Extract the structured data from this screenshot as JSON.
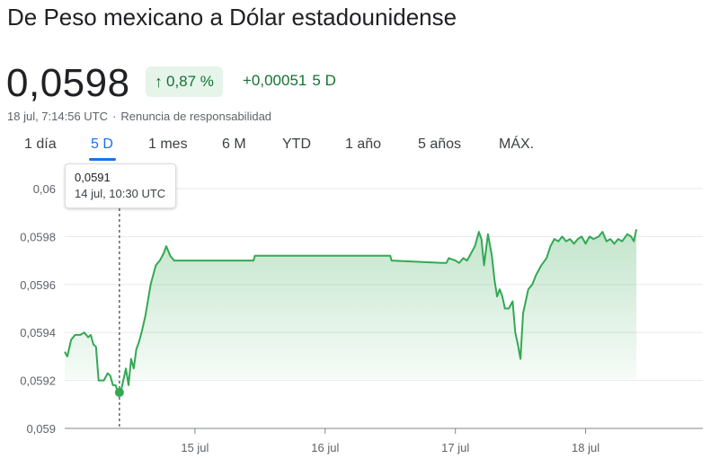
{
  "header": {
    "title": "De Peso mexicano a Dólar estadounidense",
    "price": "0,0598",
    "change_pct": "0,87 %",
    "change_arrow": "↑",
    "change_abs": "+0,00051",
    "change_period": "5 D",
    "timestamp": "18 jul, 7:14:56 UTC",
    "disclaimer": "Renuncia de responsabilidad"
  },
  "tabs": [
    {
      "label": "1 día"
    },
    {
      "label": "5 D",
      "active": true
    },
    {
      "label": "1 mes"
    },
    {
      "label": "6 M"
    },
    {
      "label": "YTD"
    },
    {
      "label": "1 año"
    },
    {
      "label": "5 años"
    },
    {
      "label": "MÁX."
    }
  ],
  "tooltip": {
    "value": "0,0591",
    "time": "14 jul, 10:30 UTC"
  },
  "colors": {
    "line": "#34a853",
    "positive_text": "#137333",
    "active_tab": "#1a73e8"
  },
  "chart_data": {
    "type": "area",
    "y_ticks": [
      "0,059",
      "0,0592",
      "0,0594",
      "0,0596",
      "0,0598",
      "0,06"
    ],
    "y_tick_values": [
      0.059,
      0.0592,
      0.0594,
      0.0596,
      0.0598,
      0.06
    ],
    "ylim": [
      0.059,
      0.06
    ],
    "x_ticks": [
      "15 jul",
      "16 jul",
      "17 jul",
      "18 jul"
    ],
    "x_tick_values": [
      15,
      16,
      17,
      18
    ],
    "xlim": [
      14.0,
      18.9
    ],
    "grid": true,
    "highlight": {
      "x": 14.42,
      "y": 0.05915
    },
    "series": [
      {
        "points": [
          [
            14.0,
            0.05932
          ],
          [
            14.02,
            0.0593
          ],
          [
            14.05,
            0.05937
          ],
          [
            14.08,
            0.05939
          ],
          [
            14.12,
            0.05939
          ],
          [
            14.15,
            0.0594
          ],
          [
            14.18,
            0.05938
          ],
          [
            14.2,
            0.05939
          ],
          [
            14.22,
            0.05935
          ],
          [
            14.24,
            0.05934
          ],
          [
            14.26,
            0.0592
          ],
          [
            14.3,
            0.0592
          ],
          [
            14.33,
            0.05923
          ],
          [
            14.35,
            0.05922
          ],
          [
            14.37,
            0.05918
          ],
          [
            14.39,
            0.05918
          ],
          [
            14.41,
            0.05915
          ],
          [
            14.43,
            0.05915
          ],
          [
            14.45,
            0.0592
          ],
          [
            14.47,
            0.05925
          ],
          [
            14.49,
            0.05918
          ],
          [
            14.51,
            0.05929
          ],
          [
            14.53,
            0.05925
          ],
          [
            14.55,
            0.05933
          ],
          [
            14.57,
            0.05936
          ],
          [
            14.59,
            0.0594
          ],
          [
            14.62,
            0.05947
          ],
          [
            14.66,
            0.0596
          ],
          [
            14.7,
            0.05968
          ],
          [
            14.73,
            0.0597
          ],
          [
            14.76,
            0.05973
          ],
          [
            14.78,
            0.05976
          ],
          [
            14.81,
            0.05972
          ],
          [
            14.84,
            0.0597
          ],
          [
            14.87,
            0.0597
          ],
          [
            15.2,
            0.0597
          ],
          [
            15.45,
            0.0597
          ],
          [
            15.46,
            0.05972
          ],
          [
            16.0,
            0.05972
          ],
          [
            16.5,
            0.05972
          ],
          [
            16.51,
            0.0597
          ],
          [
            16.9,
            0.05969
          ],
          [
            16.93,
            0.05969
          ],
          [
            16.95,
            0.05971
          ],
          [
            17.0,
            0.0597
          ],
          [
            17.03,
            0.05969
          ],
          [
            17.06,
            0.05971
          ],
          [
            17.09,
            0.0597
          ],
          [
            17.12,
            0.05973
          ],
          [
            17.15,
            0.05976
          ],
          [
            17.18,
            0.05982
          ],
          [
            17.2,
            0.05979
          ],
          [
            17.22,
            0.05968
          ],
          [
            17.25,
            0.05981
          ],
          [
            17.28,
            0.05972
          ],
          [
            17.3,
            0.05962
          ],
          [
            17.32,
            0.05955
          ],
          [
            17.34,
            0.05958
          ],
          [
            17.36,
            0.05955
          ],
          [
            17.38,
            0.0595
          ],
          [
            17.41,
            0.0595
          ],
          [
            17.44,
            0.05953
          ],
          [
            17.46,
            0.0594
          ],
          [
            17.48,
            0.05935
          ],
          [
            17.5,
            0.05929
          ],
          [
            17.52,
            0.05948
          ],
          [
            17.54,
            0.05953
          ],
          [
            17.56,
            0.05958
          ],
          [
            17.59,
            0.0596
          ],
          [
            17.62,
            0.05964
          ],
          [
            17.66,
            0.05968
          ],
          [
            17.7,
            0.05971
          ],
          [
            17.73,
            0.05976
          ],
          [
            17.76,
            0.05979
          ],
          [
            17.79,
            0.05978
          ],
          [
            17.82,
            0.0598
          ],
          [
            17.85,
            0.05978
          ],
          [
            17.88,
            0.05979
          ],
          [
            17.91,
            0.05977
          ],
          [
            17.94,
            0.05979
          ],
          [
            17.97,
            0.0598
          ],
          [
            18.0,
            0.05977
          ],
          [
            18.03,
            0.0598
          ],
          [
            18.06,
            0.05979
          ],
          [
            18.1,
            0.0598
          ],
          [
            18.13,
            0.05982
          ],
          [
            18.16,
            0.05978
          ],
          [
            18.19,
            0.05979
          ],
          [
            18.22,
            0.05977
          ],
          [
            18.25,
            0.05979
          ],
          [
            18.28,
            0.05978
          ],
          [
            18.32,
            0.05981
          ],
          [
            18.35,
            0.0598
          ],
          [
            18.37,
            0.05978
          ],
          [
            18.39,
            0.05983
          ]
        ]
      }
    ]
  }
}
